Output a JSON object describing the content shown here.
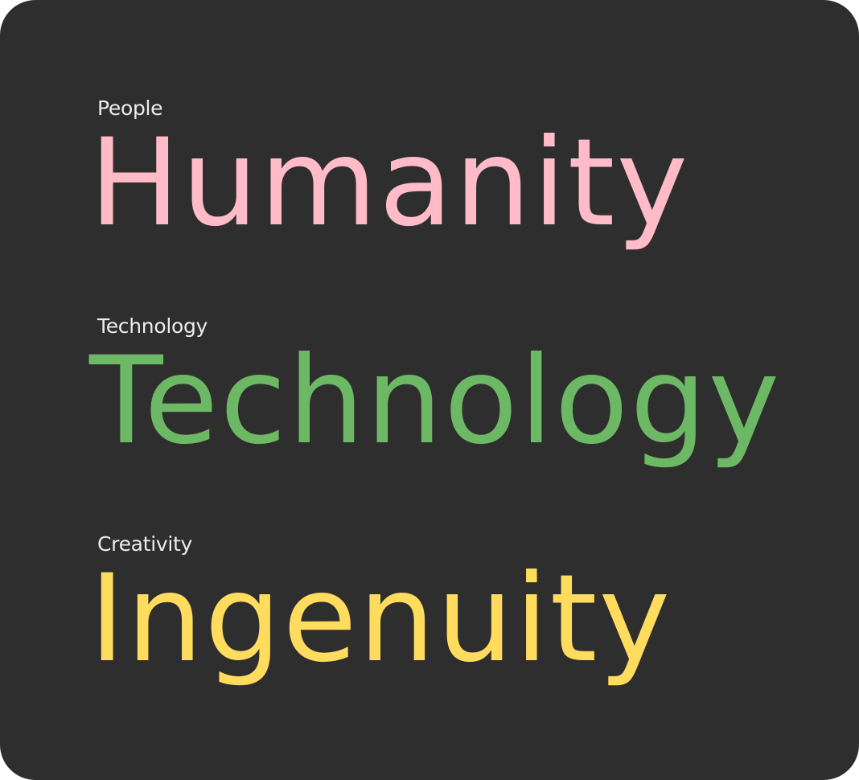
{
  "items": [
    {
      "label": "People",
      "word": "Humanity",
      "color": "#ffbcc8"
    },
    {
      "label": "Technology",
      "word": "Technology",
      "color": "#6cb864"
    },
    {
      "label": "Creativity",
      "word": "Ingenuity",
      "color": "#ffdc5e"
    }
  ],
  "background_color": "#2e2e2e"
}
